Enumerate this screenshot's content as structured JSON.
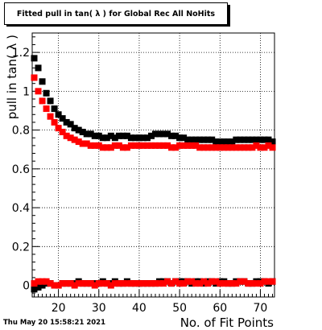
{
  "chart_data": {
    "type": "scatter",
    "title": "Fitted pull in tan( λ ) for Global Rec All NoHits",
    "xlabel": "No. of Fit Points",
    "ylabel": "pull in tan( λ )",
    "xlim": [
      13.5,
      73.5
    ],
    "ylim": [
      -0.06,
      1.3
    ],
    "xticks": [
      20,
      30,
      40,
      50,
      60,
      70
    ],
    "yticks": [
      0,
      0.2,
      0.4,
      0.6,
      0.8,
      1,
      1.2
    ],
    "ytick_labels": [
      "0",
      "0.2",
      "0.4",
      "0.6",
      "0.8",
      "1",
      "1.2"
    ],
    "grid": true,
    "x": [
      14,
      15,
      16,
      17,
      18,
      19,
      20,
      21,
      22,
      23,
      24,
      25,
      26,
      27,
      28,
      29,
      30,
      31,
      32,
      33,
      34,
      35,
      36,
      37,
      38,
      39,
      40,
      41,
      42,
      43,
      44,
      45,
      46,
      47,
      48,
      49,
      50,
      51,
      52,
      53,
      54,
      55,
      56,
      57,
      58,
      59,
      60,
      61,
      62,
      63,
      64,
      65,
      66,
      67,
      68,
      69,
      70,
      71,
      72,
      73
    ],
    "series": [
      {
        "color": "#000000",
        "values": [
          1.17,
          1.12,
          1.05,
          0.99,
          0.95,
          0.91,
          0.88,
          0.86,
          0.84,
          0.83,
          0.81,
          0.8,
          0.79,
          0.78,
          0.78,
          0.77,
          0.77,
          0.76,
          0.76,
          0.77,
          0.76,
          0.77,
          0.77,
          0.77,
          0.76,
          0.76,
          0.76,
          0.76,
          0.76,
          0.77,
          0.78,
          0.78,
          0.78,
          0.78,
          0.77,
          0.77,
          0.76,
          0.76,
          0.75,
          0.75,
          0.75,
          0.75,
          0.75,
          0.75,
          0.75,
          0.74,
          0.74,
          0.74,
          0.74,
          0.74,
          0.75,
          0.75,
          0.75,
          0.75,
          0.75,
          0.75,
          0.75,
          0.75,
          0.75,
          0.74
        ]
      },
      {
        "color": "#000000",
        "values": [
          -0.02,
          -0.01,
          0.0,
          0.01,
          0.01,
          0.0,
          0.0,
          0.01,
          0.01,
          0.01,
          0.01,
          0.02,
          0.01,
          0.01,
          0.01,
          0.01,
          0.01,
          0.02,
          0.01,
          0.01,
          0.02,
          0.01,
          0.01,
          0.02,
          0.01,
          0.01,
          0.01,
          0.01,
          0.01,
          0.01,
          0.01,
          0.02,
          0.02,
          0.02,
          0.01,
          0.02,
          0.02,
          0.02,
          0.02,
          0.01,
          0.02,
          0.02,
          0.01,
          0.02,
          0.02,
          0.01,
          0.02,
          0.02,
          0.01,
          0.01,
          0.02,
          0.02,
          0.02,
          0.01,
          0.01,
          0.02,
          0.02,
          0.02,
          0.01,
          0.02
        ]
      },
      {
        "color": "#ff0000",
        "values": [
          1.07,
          1.0,
          0.95,
          0.91,
          0.87,
          0.84,
          0.81,
          0.79,
          0.77,
          0.76,
          0.75,
          0.74,
          0.73,
          0.73,
          0.72,
          0.72,
          0.72,
          0.71,
          0.71,
          0.71,
          0.72,
          0.72,
          0.71,
          0.71,
          0.72,
          0.72,
          0.72,
          0.72,
          0.72,
          0.72,
          0.72,
          0.72,
          0.72,
          0.72,
          0.71,
          0.71,
          0.72,
          0.72,
          0.72,
          0.72,
          0.72,
          0.71,
          0.71,
          0.71,
          0.71,
          0.71,
          0.71,
          0.71,
          0.71,
          0.71,
          0.71,
          0.71,
          0.71,
          0.71,
          0.71,
          0.72,
          0.71,
          0.71,
          0.72,
          0.71
        ]
      },
      {
        "color": "#ff0000",
        "values": [
          0.01,
          0.02,
          0.02,
          0.02,
          0.01,
          0.0,
          0.0,
          0.01,
          0.01,
          0.01,
          0.0,
          0.01,
          0.01,
          0.01,
          0.01,
          0.0,
          0.01,
          0.01,
          0.01,
          0.0,
          0.01,
          0.01,
          0.01,
          0.01,
          0.01,
          0.01,
          0.01,
          0.01,
          0.01,
          0.01,
          0.01,
          0.01,
          0.01,
          0.02,
          0.01,
          0.02,
          0.01,
          0.01,
          0.02,
          0.02,
          0.01,
          0.01,
          0.02,
          0.01,
          0.02,
          0.02,
          0.01,
          0.01,
          0.01,
          0.01,
          0.01,
          0.02,
          0.02,
          0.01,
          0.01,
          0.01,
          0.01,
          0.02,
          0.02,
          0.02
        ]
      }
    ]
  },
  "footer": {
    "timestamp": "Thu May 20 15:58:21 2021"
  }
}
